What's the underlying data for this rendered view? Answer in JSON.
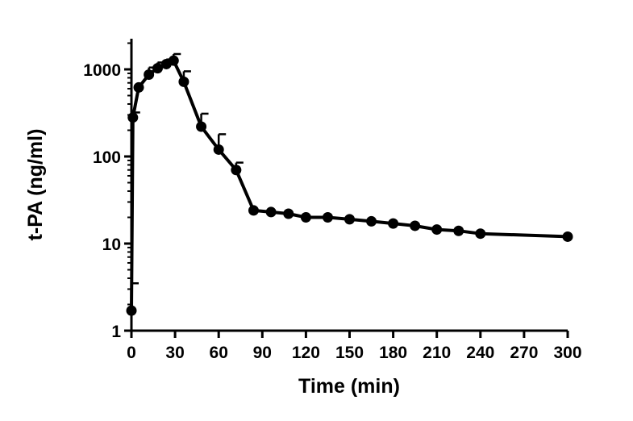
{
  "chart_data": {
    "type": "line",
    "title": "",
    "xlabel": "Time (min)",
    "ylabel": "t-PA (ng/ml)",
    "xlim": [
      0,
      300
    ],
    "ylim": [
      1,
      2000
    ],
    "yscale": "log",
    "grid": false,
    "x_ticks": [
      0,
      30,
      60,
      90,
      120,
      150,
      180,
      210,
      240,
      270,
      300
    ],
    "x_tick_labels": [
      "0",
      "30",
      "60",
      "90",
      "120",
      "150",
      "180",
      "210",
      "240",
      "270",
      "300"
    ],
    "y_ticks": [
      1,
      10,
      100,
      1000
    ],
    "y_tick_labels": [
      "1",
      "10",
      "100",
      "1000"
    ],
    "series": [
      {
        "color": "#000000",
        "x": [
          0,
          1,
          5,
          12,
          18,
          24,
          29,
          36,
          48,
          60,
          72,
          84,
          96,
          108,
          120,
          135,
          150,
          165,
          180,
          195,
          210,
          225,
          240,
          300
        ],
        "y": [
          1.7,
          280,
          620,
          870,
          1030,
          1150,
          1260,
          720,
          220,
          120,
          70,
          24,
          23,
          22,
          20,
          20,
          19,
          18,
          17,
          16,
          14.5,
          14,
          13,
          12
        ],
        "err_upper": [
          3.5,
          320,
          null,
          1050,
          1200,
          1300,
          1500,
          950,
          310,
          180,
          85,
          null,
          null,
          null,
          null,
          null,
          null,
          null,
          null,
          null,
          null,
          null,
          null,
          null
        ]
      }
    ]
  }
}
